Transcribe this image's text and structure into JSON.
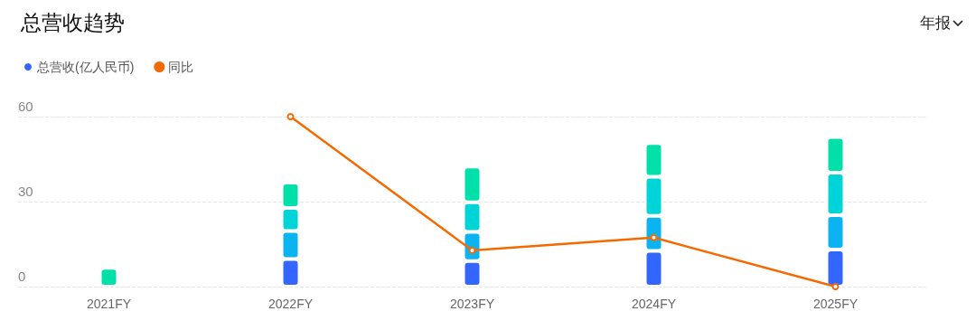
{
  "chart_data": {
    "type": "bar",
    "title": "总营收趋势",
    "annotations": [
      "年报"
    ],
    "categories": [
      "2021FY",
      "2022FY",
      "2023FY",
      "2024FY",
      "2025FY"
    ],
    "stacked": true,
    "series": [
      {
        "name": "总营收(亿人民币)",
        "color": "#3366ff",
        "values": [
          null,
          9.7,
          9.0,
          12.6,
          13.1
        ]
      },
      {
        "color": "#0bb4f0",
        "values": [
          null,
          9.9,
          10.3,
          12.4,
          12.1
        ]
      },
      {
        "color": "#00d4d9",
        "values": [
          null,
          8.2,
          10.5,
          13.8,
          15.0
        ]
      },
      {
        "color": "#00e0a8",
        "values": [
          6.6,
          8.9,
          12.6,
          11.9,
          12.6
        ]
      },
      {
        "name": "同比",
        "type": "line",
        "color": "#f56a00",
        "values": [
          null,
          60,
          12.8,
          17.3,
          0
        ]
      }
    ],
    "ylim": [
      0,
      60
    ],
    "yticks": [
      0,
      30,
      60
    ],
    "grid": "y",
    "legend": "top left",
    "marker": "circle",
    "line_style": "solid"
  }
}
